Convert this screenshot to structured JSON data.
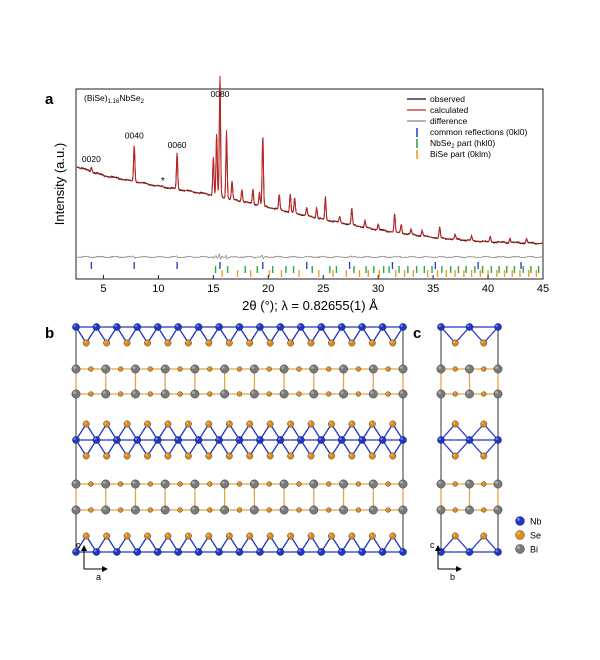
{
  "panels": {
    "a": "a",
    "b": "b",
    "c": "c"
  },
  "compound": {
    "pre": "(BiSe)",
    "sub1": "1.16",
    "post": "NbSe",
    "sub2": "2"
  },
  "chart_data": {
    "type": "line",
    "ylabel": "Intensity (a.u.)",
    "xlabel": "2θ (°); λ = 0.82655(1) Å",
    "xlim": [
      2.5,
      45
    ],
    "xticks": [
      5,
      10,
      15,
      20,
      25,
      30,
      35,
      40,
      45
    ],
    "yticks_shown": false,
    "legend_position": "top-right",
    "series": [
      {
        "name": "observed",
        "color": "#111111"
      },
      {
        "name": "calculated",
        "color": "#d42020"
      },
      {
        "name": "difference",
        "color": "#8a8a8a"
      }
    ],
    "background": {
      "x": [
        2.5,
        5,
        10,
        15,
        20,
        25,
        30,
        35,
        40,
        45
      ],
      "y": [
        0.56,
        0.5,
        0.43,
        0.37,
        0.29,
        0.21,
        0.14,
        0.09,
        0.06,
        0.05
      ]
    },
    "peaks": [
      {
        "x": 3.9,
        "h": 0.03
      },
      {
        "x": 7.8,
        "h": 0.25
      },
      {
        "x": 11.7,
        "h": 0.24
      },
      {
        "x": 15.0,
        "h": 0.26
      },
      {
        "x": 15.3,
        "h": 0.42
      },
      {
        "x": 15.6,
        "h": 0.8
      },
      {
        "x": 16.2,
        "h": 0.45
      },
      {
        "x": 16.7,
        "h": 0.12
      },
      {
        "x": 17.6,
        "h": 0.08
      },
      {
        "x": 18.6,
        "h": 0.1
      },
      {
        "x": 19.2,
        "h": 0.09
      },
      {
        "x": 19.5,
        "h": 0.48
      },
      {
        "x": 21.0,
        "h": 0.1
      },
      {
        "x": 22.0,
        "h": 0.12
      },
      {
        "x": 22.4,
        "h": 0.1
      },
      {
        "x": 23.5,
        "h": 0.05
      },
      {
        "x": 24.4,
        "h": 0.07
      },
      {
        "x": 25.2,
        "h": 0.15
      },
      {
        "x": 26.5,
        "h": 0.04
      },
      {
        "x": 27.6,
        "h": 0.11
      },
      {
        "x": 28.8,
        "h": 0.04
      },
      {
        "x": 30.0,
        "h": 0.04
      },
      {
        "x": 31.5,
        "h": 0.12
      },
      {
        "x": 32.1,
        "h": 0.06
      },
      {
        "x": 33.0,
        "h": 0.03
      },
      {
        "x": 34.0,
        "h": 0.04
      },
      {
        "x": 35.6,
        "h": 0.07
      },
      {
        "x": 37.0,
        "h": 0.03
      },
      {
        "x": 38.5,
        "h": 0.03
      },
      {
        "x": 40.2,
        "h": 0.04
      },
      {
        "x": 42.0,
        "h": 0.03
      },
      {
        "x": 43.5,
        "h": 0.03
      }
    ],
    "peak_labels": [
      {
        "text": "0020",
        "x": 3.9
      },
      {
        "text": "0040",
        "x": 7.8
      },
      {
        "text": "0060",
        "x": 11.7
      },
      {
        "text": "0080",
        "x": 15.6
      }
    ],
    "asterisk": {
      "text": "*",
      "x": 10.4
    },
    "tick_rows": [
      {
        "name": "common reflections (0kl0)",
        "color": "#2b46c9",
        "positions": [
          3.9,
          7.8,
          11.7,
          15.6,
          19.5,
          23.5,
          27.4,
          31.3,
          35.2,
          39.1,
          43.0
        ]
      },
      {
        "name": "NbSe2 part (hkl0)",
        "color": "#2aa84a",
        "positions": [
          15.2,
          16.3,
          17.9,
          19.0,
          20.4,
          21.6,
          22.3,
          24.0,
          25.6,
          26.2,
          27.8,
          28.9,
          29.6,
          30.5,
          31.0,
          31.9,
          32.7,
          33.5,
          34.2,
          34.9,
          35.8,
          36.6,
          37.3,
          38.0,
          38.8,
          39.5,
          40.3,
          41.0,
          41.7,
          42.4,
          43.2,
          43.9,
          44.6
        ]
      },
      {
        "name": "BiSe part (0klm)",
        "color": "#f0a020",
        "positions": [
          15.8,
          17.2,
          18.4,
          20.1,
          21.2,
          22.8,
          24.6,
          25.9,
          27.1,
          28.3,
          29.1,
          30.1,
          31.6,
          32.4,
          33.2,
          34.5,
          35.4,
          36.2,
          37.0,
          37.8,
          38.5,
          39.3,
          40.0,
          40.8,
          41.5,
          42.2,
          42.9,
          43.7,
          44.4
        ]
      }
    ],
    "legend": {
      "observed": "observed",
      "calculated": "calculated",
      "difference": "difference",
      "common": "common reflections (0kl0)",
      "nbse2_pre": "NbSe",
      "nbse2_sub": "2",
      "nbse2_post": " part (hkl0)",
      "bise": "BiSe part (0klm)"
    }
  },
  "crystal": {
    "colors": {
      "Nb": "#1f36c8",
      "Se": "#e38a16",
      "Bi": "#7a7a7a",
      "bond": "#e2a646",
      "frame": "#333333"
    },
    "axes_b": {
      "up": "c",
      "right": "a"
    },
    "axes_c": {
      "up": "c",
      "right": "b"
    },
    "legend": [
      "Nb",
      "Se",
      "Bi"
    ]
  }
}
